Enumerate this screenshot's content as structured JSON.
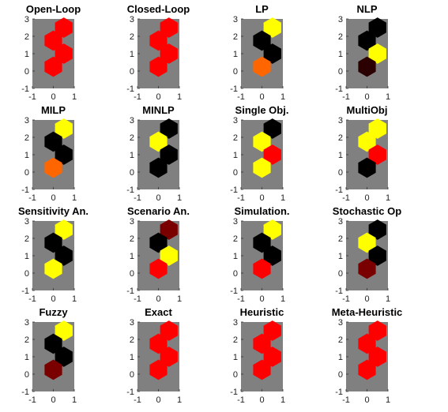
{
  "colors": {
    "axes_background": "#808080",
    "red": "#ff0000",
    "black": "#000000",
    "yellow": "#ffff00",
    "orange": "#ff6600",
    "dark_red": "#7a0000",
    "very_dark_red": "#2a0000"
  },
  "chart_data": [
    {
      "type": "heatmap",
      "title": "Open-Loop",
      "x_ticks": [
        "-1",
        "0",
        "1"
      ],
      "y_ticks": [
        "-1",
        "0",
        "1",
        "2",
        "3"
      ],
      "xlim": [
        -1,
        1
      ],
      "ylim": [
        -1,
        3
      ],
      "cells": [
        {
          "x": 0.5,
          "y": 2.5,
          "color": "red"
        },
        {
          "x": 0,
          "y": 1.75,
          "color": "red"
        },
        {
          "x": 0.5,
          "y": 1,
          "color": "red"
        },
        {
          "x": 0,
          "y": 0.25,
          "color": "red"
        }
      ]
    },
    {
      "type": "heatmap",
      "title": "Closed-Loop",
      "x_ticks": [
        "-1",
        "0",
        "1"
      ],
      "y_ticks": [
        "-1",
        "0",
        "1",
        "2",
        "3"
      ],
      "xlim": [
        -1,
        1
      ],
      "ylim": [
        -1,
        3
      ],
      "cells": [
        {
          "x": 0.5,
          "y": 2.5,
          "color": "red"
        },
        {
          "x": 0,
          "y": 1.75,
          "color": "red"
        },
        {
          "x": 0.5,
          "y": 1,
          "color": "red"
        },
        {
          "x": 0,
          "y": 0.25,
          "color": "red"
        }
      ]
    },
    {
      "type": "heatmap",
      "title": "LP",
      "x_ticks": [
        "-1",
        "0",
        "1"
      ],
      "y_ticks": [
        "-1",
        "0",
        "1",
        "2",
        "3"
      ],
      "xlim": [
        -1,
        1
      ],
      "ylim": [
        -1,
        3
      ],
      "cells": [
        {
          "x": 0.5,
          "y": 2.5,
          "color": "yellow"
        },
        {
          "x": 0,
          "y": 1.75,
          "color": "black"
        },
        {
          "x": 0.5,
          "y": 1,
          "color": "black"
        },
        {
          "x": 0,
          "y": 0.25,
          "color": "orange"
        }
      ]
    },
    {
      "type": "heatmap",
      "title": "NLP",
      "x_ticks": [
        "-1",
        "0",
        "1"
      ],
      "y_ticks": [
        "-1",
        "0",
        "1",
        "2",
        "3"
      ],
      "xlim": [
        -1,
        1
      ],
      "ylim": [
        -1,
        3
      ],
      "cells": [
        {
          "x": 0.5,
          "y": 2.5,
          "color": "black"
        },
        {
          "x": 0,
          "y": 1.75,
          "color": "black"
        },
        {
          "x": 0.5,
          "y": 1,
          "color": "yellow"
        },
        {
          "x": 0,
          "y": 0.25,
          "color": "very_dark_red"
        }
      ]
    },
    {
      "type": "heatmap",
      "title": "MILP",
      "x_ticks": [
        "-1",
        "0",
        "1"
      ],
      "y_ticks": [
        "-1",
        "0",
        "1",
        "2",
        "3"
      ],
      "xlim": [
        -1,
        1
      ],
      "ylim": [
        -1,
        3
      ],
      "cells": [
        {
          "x": 0.5,
          "y": 2.5,
          "color": "yellow"
        },
        {
          "x": 0,
          "y": 1.75,
          "color": "black"
        },
        {
          "x": 0.5,
          "y": 1,
          "color": "black"
        },
        {
          "x": 0,
          "y": 0.25,
          "color": "orange"
        }
      ]
    },
    {
      "type": "heatmap",
      "title": "MINLP",
      "x_ticks": [
        "-1",
        "0",
        "1"
      ],
      "y_ticks": [
        "-1",
        "0",
        "1",
        "2",
        "3"
      ],
      "xlim": [
        -1,
        1
      ],
      "ylim": [
        -1,
        3
      ],
      "cells": [
        {
          "x": 0.5,
          "y": 2.5,
          "color": "black"
        },
        {
          "x": 0,
          "y": 1.75,
          "color": "yellow"
        },
        {
          "x": 0.5,
          "y": 1,
          "color": "black"
        },
        {
          "x": 0,
          "y": 0.25,
          "color": "black"
        }
      ]
    },
    {
      "type": "heatmap",
      "title": "Single Obj.",
      "x_ticks": [
        "-1",
        "0",
        "1"
      ],
      "y_ticks": [
        "-1",
        "0",
        "1",
        "2",
        "3"
      ],
      "xlim": [
        -1,
        1
      ],
      "ylim": [
        -1,
        3
      ],
      "cells": [
        {
          "x": 0.5,
          "y": 2.5,
          "color": "black"
        },
        {
          "x": 0,
          "y": 1.75,
          "color": "yellow"
        },
        {
          "x": 0.5,
          "y": 1,
          "color": "red"
        },
        {
          "x": 0,
          "y": 0.25,
          "color": "yellow"
        }
      ]
    },
    {
      "type": "heatmap",
      "title": "MultiObj",
      "x_ticks": [
        "-1",
        "0",
        "1"
      ],
      "y_ticks": [
        "-1",
        "0",
        "1",
        "2",
        "3"
      ],
      "xlim": [
        -1,
        1
      ],
      "ylim": [
        -1,
        3
      ],
      "cells": [
        {
          "x": 0.5,
          "y": 2.5,
          "color": "yellow"
        },
        {
          "x": 0,
          "y": 1.75,
          "color": "yellow"
        },
        {
          "x": 0.5,
          "y": 1,
          "color": "red"
        },
        {
          "x": 0,
          "y": 0.25,
          "color": "black"
        }
      ]
    },
    {
      "type": "heatmap",
      "title": "Sensitivity An.",
      "x_ticks": [
        "-1",
        "0",
        "1"
      ],
      "y_ticks": [
        "-1",
        "0",
        "1",
        "2",
        "3"
      ],
      "xlim": [
        -1,
        1
      ],
      "ylim": [
        -1,
        3
      ],
      "cells": [
        {
          "x": 0.5,
          "y": 2.5,
          "color": "yellow"
        },
        {
          "x": 0,
          "y": 1.75,
          "color": "black"
        },
        {
          "x": 0.5,
          "y": 1,
          "color": "black"
        },
        {
          "x": 0,
          "y": 0.25,
          "color": "yellow"
        }
      ]
    },
    {
      "type": "heatmap",
      "title": "Scenario An.",
      "x_ticks": [
        "-1",
        "0",
        "1"
      ],
      "y_ticks": [
        "-1",
        "0",
        "1",
        "2",
        "3"
      ],
      "xlim": [
        -1,
        1
      ],
      "ylim": [
        -1,
        3
      ],
      "cells": [
        {
          "x": 0.5,
          "y": 2.5,
          "color": "dark_red"
        },
        {
          "x": 0,
          "y": 1.75,
          "color": "black"
        },
        {
          "x": 0.5,
          "y": 1,
          "color": "yellow"
        },
        {
          "x": 0,
          "y": 0.25,
          "color": "red"
        }
      ]
    },
    {
      "type": "heatmap",
      "title": "Simulation.",
      "x_ticks": [
        "-1",
        "0",
        "1"
      ],
      "y_ticks": [
        "-1",
        "0",
        "1",
        "2",
        "3"
      ],
      "xlim": [
        -1,
        1
      ],
      "ylim": [
        -1,
        3
      ],
      "cells": [
        {
          "x": 0.5,
          "y": 2.5,
          "color": "yellow"
        },
        {
          "x": 0,
          "y": 1.75,
          "color": "black"
        },
        {
          "x": 0.5,
          "y": 1,
          "color": "black"
        },
        {
          "x": 0,
          "y": 0.25,
          "color": "red"
        }
      ]
    },
    {
      "type": "heatmap",
      "title": "Stochastic Op",
      "x_ticks": [
        "-1",
        "0",
        "1"
      ],
      "y_ticks": [
        "-1",
        "0",
        "1",
        "2",
        "3"
      ],
      "xlim": [
        -1,
        1
      ],
      "ylim": [
        -1,
        3
      ],
      "cells": [
        {
          "x": 0.5,
          "y": 2.5,
          "color": "black"
        },
        {
          "x": 0,
          "y": 1.75,
          "color": "yellow"
        },
        {
          "x": 0.5,
          "y": 1,
          "color": "black"
        },
        {
          "x": 0,
          "y": 0.25,
          "color": "dark_red"
        }
      ]
    },
    {
      "type": "heatmap",
      "title": "Fuzzy",
      "x_ticks": [
        "-1",
        "0",
        "1"
      ],
      "y_ticks": [
        "-1",
        "0",
        "1",
        "2",
        "3"
      ],
      "xlim": [
        -1,
        1
      ],
      "ylim": [
        -1,
        3
      ],
      "cells": [
        {
          "x": 0.5,
          "y": 2.5,
          "color": "yellow"
        },
        {
          "x": 0,
          "y": 1.75,
          "color": "black"
        },
        {
          "x": 0.5,
          "y": 1,
          "color": "black"
        },
        {
          "x": 0,
          "y": 0.25,
          "color": "dark_red"
        }
      ]
    },
    {
      "type": "heatmap",
      "title": "Exact",
      "x_ticks": [
        "-1",
        "0",
        "1"
      ],
      "y_ticks": [
        "-1",
        "0",
        "1",
        "2",
        "3"
      ],
      "xlim": [
        -1,
        1
      ],
      "ylim": [
        -1,
        3
      ],
      "cells": [
        {
          "x": 0.5,
          "y": 2.5,
          "color": "red"
        },
        {
          "x": 0,
          "y": 1.75,
          "color": "red"
        },
        {
          "x": 0.5,
          "y": 1,
          "color": "red"
        },
        {
          "x": 0,
          "y": 0.25,
          "color": "red"
        }
      ]
    },
    {
      "type": "heatmap",
      "title": "Heuristic",
      "x_ticks": [
        "-1",
        "0",
        "1"
      ],
      "y_ticks": [
        "-1",
        "0",
        "1",
        "2",
        "3"
      ],
      "xlim": [
        -1,
        1
      ],
      "ylim": [
        -1,
        3
      ],
      "cells": [
        {
          "x": 0.5,
          "y": 2.5,
          "color": "red"
        },
        {
          "x": 0,
          "y": 1.75,
          "color": "red"
        },
        {
          "x": 0.5,
          "y": 1,
          "color": "red"
        },
        {
          "x": 0,
          "y": 0.25,
          "color": "red"
        }
      ]
    },
    {
      "type": "heatmap",
      "title": "Meta-Heuristic",
      "x_ticks": [
        "-1",
        "0",
        "1"
      ],
      "y_ticks": [
        "-1",
        "0",
        "1",
        "2",
        "3"
      ],
      "xlim": [
        -1,
        1
      ],
      "ylim": [
        -1,
        3
      ],
      "cells": [
        {
          "x": 0.5,
          "y": 2.5,
          "color": "red"
        },
        {
          "x": 0,
          "y": 1.75,
          "color": "red"
        },
        {
          "x": 0.5,
          "y": 1,
          "color": "red"
        },
        {
          "x": 0,
          "y": 0.25,
          "color": "red"
        }
      ]
    }
  ]
}
